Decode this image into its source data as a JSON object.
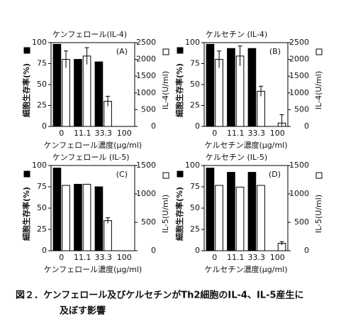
{
  "chart_data": [
    {
      "type": "bar",
      "title": "ケンフェロール(IL-4)",
      "panel_label": "(A)",
      "categories": [
        "0",
        "11.1",
        "33.3",
        "100"
      ],
      "xlabel": "ケンフェロール濃度(μg/ml)",
      "ylabel": "細胞生存率(%)",
      "y2label": "IL-4(U/ml)",
      "ylim": [
        0,
        100
      ],
      "yticks": [
        0,
        25,
        50,
        75,
        100
      ],
      "y2lim": [
        0,
        2500
      ],
      "y2ticks": [
        0,
        500,
        1000,
        1500,
        2000,
        2500
      ],
      "series": [
        {
          "color": "#000000",
          "values": [
            98,
            80,
            77,
            0
          ]
        },
        {
          "color": "#ffffff",
          "axis": "y2",
          "values": [
            2000,
            2100,
            750,
            0
          ],
          "errors": [
            250,
            250,
            150,
            null
          ]
        }
      ]
    },
    {
      "type": "bar",
      "title": "ケルセチン (IL-4)",
      "panel_label": "(B)",
      "categories": [
        "0",
        "11.1",
        "33.3",
        "100"
      ],
      "xlabel": "ケルセチン濃度(μg/ml)",
      "ylabel": "細胞生存率(%)",
      "y2label": "IL-4(U/ml)",
      "ylim": [
        0,
        100
      ],
      "yticks": [
        0,
        25,
        50,
        75,
        100
      ],
      "y2lim": [
        0,
        2500
      ],
      "y2ticks": [
        0,
        500,
        1000,
        1500,
        2000,
        2500
      ],
      "series": [
        {
          "color": "#000000",
          "values": [
            98,
            93,
            93,
            0
          ]
        },
        {
          "color": "#ffffff",
          "axis": "y2",
          "values": [
            2000,
            2100,
            1050,
            100
          ],
          "errors": [
            250,
            300,
            150,
            250
          ]
        }
      ]
    },
    {
      "type": "bar",
      "title": "ケンフェロール (IL-5)",
      "panel_label": "(C)",
      "categories": [
        "0",
        "11.1",
        "33.3",
        "100"
      ],
      "xlabel": "ケンフェロール濃度(μg/ml)",
      "ylabel": "細胞生存率(%)",
      "y2label": "IL-5(U/ml)",
      "ylim": [
        0,
        100
      ],
      "yticks": [
        0,
        25,
        50,
        75,
        100
      ],
      "y2lim": [
        0,
        1500
      ],
      "y2ticks": [
        0,
        500,
        1000,
        1500
      ],
      "series": [
        {
          "color": "#000000",
          "values": [
            97,
            78,
            75,
            0
          ]
        },
        {
          "color": "#ffffff",
          "axis": "y2",
          "values": [
            1150,
            1170,
            530,
            0
          ],
          "errors": [
            null,
            null,
            50,
            null
          ]
        }
      ]
    },
    {
      "type": "bar",
      "title": "ケルセチン (IL-5)",
      "panel_label": "(D)",
      "categories": [
        "0",
        "11.1",
        "33.3",
        "100"
      ],
      "xlabel": "ケルセチン濃度(μg/ml)",
      "ylabel": "細胞生存率(%)",
      "y2label": "IL-5(U/ml)",
      "ylim": [
        0,
        100
      ],
      "yticks": [
        0,
        25,
        50,
        75,
        100
      ],
      "y2lim": [
        0,
        1500
      ],
      "y2ticks": [
        0,
        500,
        1000,
        1500
      ],
      "series": [
        {
          "color": "#000000",
          "values": [
            97,
            92,
            92,
            0
          ]
        },
        {
          "color": "#ffffff",
          "axis": "y2",
          "values": [
            1150,
            1120,
            1150,
            130
          ],
          "errors": [
            null,
            null,
            null,
            30
          ]
        }
      ]
    }
  ],
  "caption": [
    "図２．ケンフェロール及びケルセチンがTh2細胞のIL-4、IL-5産生に",
    "及ぼす影響"
  ]
}
